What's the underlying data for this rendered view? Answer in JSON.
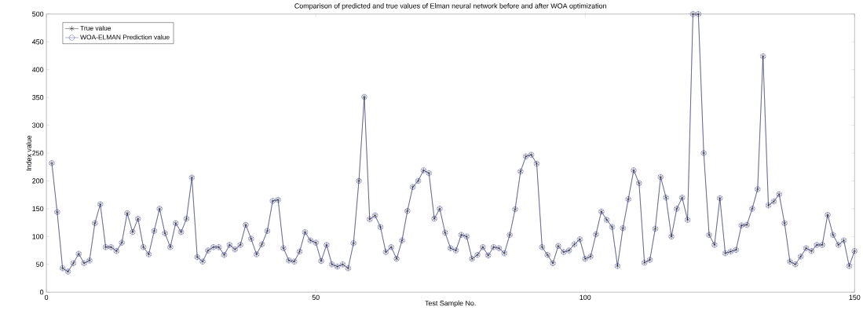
{
  "chart_data": {
    "type": "line",
    "title": "Comparison of predicted and true values of Elman neural network before and after WOA optimization",
    "xlabel": "Test Sample No.",
    "ylabel": "Index value",
    "x": [
      1,
      2,
      3,
      4,
      5,
      6,
      7,
      8,
      9,
      10,
      11,
      12,
      13,
      14,
      15,
      16,
      17,
      18,
      19,
      20,
      21,
      22,
      23,
      24,
      25,
      26,
      27,
      28,
      29,
      30,
      31,
      32,
      33,
      34,
      35,
      36,
      37,
      38,
      39,
      40,
      41,
      42,
      43,
      44,
      45,
      46,
      47,
      48,
      49,
      50,
      51,
      52,
      53,
      54,
      55,
      56,
      57,
      58,
      59,
      60,
      61,
      62,
      63,
      64,
      65,
      66,
      67,
      68,
      69,
      70,
      71,
      72,
      73,
      74,
      75,
      76,
      77,
      78,
      79,
      80,
      81,
      82,
      83,
      84,
      85,
      86,
      87,
      88,
      89,
      90,
      91,
      92,
      93,
      94,
      95,
      96,
      97,
      98,
      99,
      100,
      101,
      102,
      103,
      104,
      105,
      106,
      107,
      108,
      109,
      110,
      111,
      112,
      113,
      114,
      115,
      116,
      117,
      118,
      119,
      120,
      121,
      122,
      123,
      124,
      125,
      126,
      127,
      128,
      129,
      130,
      131,
      132,
      133,
      134,
      135,
      136,
      137,
      138,
      139,
      140,
      141,
      142,
      143,
      144,
      145,
      146,
      147,
      148,
      149,
      150
    ],
    "series": [
      {
        "name": "True value",
        "color": "#000000",
        "marker": "cross",
        "values": [
          232,
          144,
          43,
          37,
          52,
          69,
          52,
          57,
          124,
          158,
          81,
          81,
          74,
          89,
          142,
          108,
          132,
          81,
          68,
          110,
          150,
          106,
          81,
          124,
          108,
          132,
          206,
          63,
          55,
          75,
          81,
          81,
          67,
          85,
          77,
          85,
          121,
          96,
          68,
          86,
          110,
          164,
          166,
          79,
          57,
          55,
          73,
          108,
          93,
          89,
          56,
          85,
          50,
          46,
          50,
          43,
          88,
          200,
          351,
          131,
          138,
          117,
          72,
          81,
          60,
          93,
          146,
          189,
          200,
          219,
          214,
          132,
          150,
          107,
          79,
          75,
          103,
          100,
          60,
          67,
          81,
          66,
          81,
          79,
          70,
          103,
          149,
          217,
          244,
          247,
          231,
          81,
          67,
          52,
          83,
          72,
          75,
          86,
          95,
          60,
          64,
          104,
          145,
          130,
          117,
          47,
          115,
          167,
          219,
          196,
          53,
          58,
          114,
          207,
          170,
          100,
          150,
          170,
          130,
          500,
          500,
          250,
          103,
          85,
          169,
          70,
          73,
          76,
          120,
          121,
          150,
          185,
          424,
          156,
          163,
          176,
          124,
          55,
          50,
          64,
          79,
          74,
          85,
          85,
          139,
          103,
          85,
          93,
          47,
          74
        ]
      },
      {
        "name": "WOA-ELMAN Prediction value",
        "color": "#3333cc",
        "marker": "circle",
        "values": [
          232,
          144,
          43,
          37,
          52,
          69,
          52,
          57,
          124,
          158,
          81,
          81,
          74,
          89,
          142,
          108,
          132,
          81,
          68,
          110,
          150,
          106,
          81,
          124,
          108,
          132,
          206,
          63,
          55,
          75,
          81,
          81,
          67,
          85,
          77,
          85,
          121,
          96,
          68,
          86,
          110,
          164,
          166,
          79,
          57,
          55,
          73,
          108,
          93,
          89,
          56,
          85,
          50,
          46,
          50,
          43,
          88,
          200,
          351,
          131,
          138,
          117,
          72,
          81,
          60,
          93,
          146,
          189,
          200,
          219,
          214,
          132,
          150,
          107,
          79,
          75,
          103,
          100,
          60,
          67,
          81,
          66,
          81,
          79,
          70,
          103,
          149,
          217,
          244,
          247,
          231,
          81,
          67,
          52,
          83,
          72,
          75,
          86,
          95,
          60,
          64,
          104,
          145,
          130,
          117,
          47,
          115,
          167,
          219,
          196,
          53,
          58,
          114,
          207,
          170,
          100,
          150,
          170,
          130,
          500,
          500,
          250,
          103,
          85,
          169,
          70,
          73,
          76,
          120,
          121,
          150,
          185,
          424,
          156,
          163,
          176,
          124,
          55,
          50,
          64,
          79,
          74,
          85,
          85,
          139,
          103,
          85,
          93,
          47,
          74
        ]
      }
    ],
    "xlim": [
      0,
      150
    ],
    "ylim": [
      0,
      500
    ],
    "xticks": [
      0,
      50,
      100,
      150
    ],
    "yticks": [
      0,
      50,
      100,
      150,
      200,
      250,
      300,
      350,
      400,
      450,
      500
    ],
    "legend": "top left",
    "line_style": "solid"
  }
}
